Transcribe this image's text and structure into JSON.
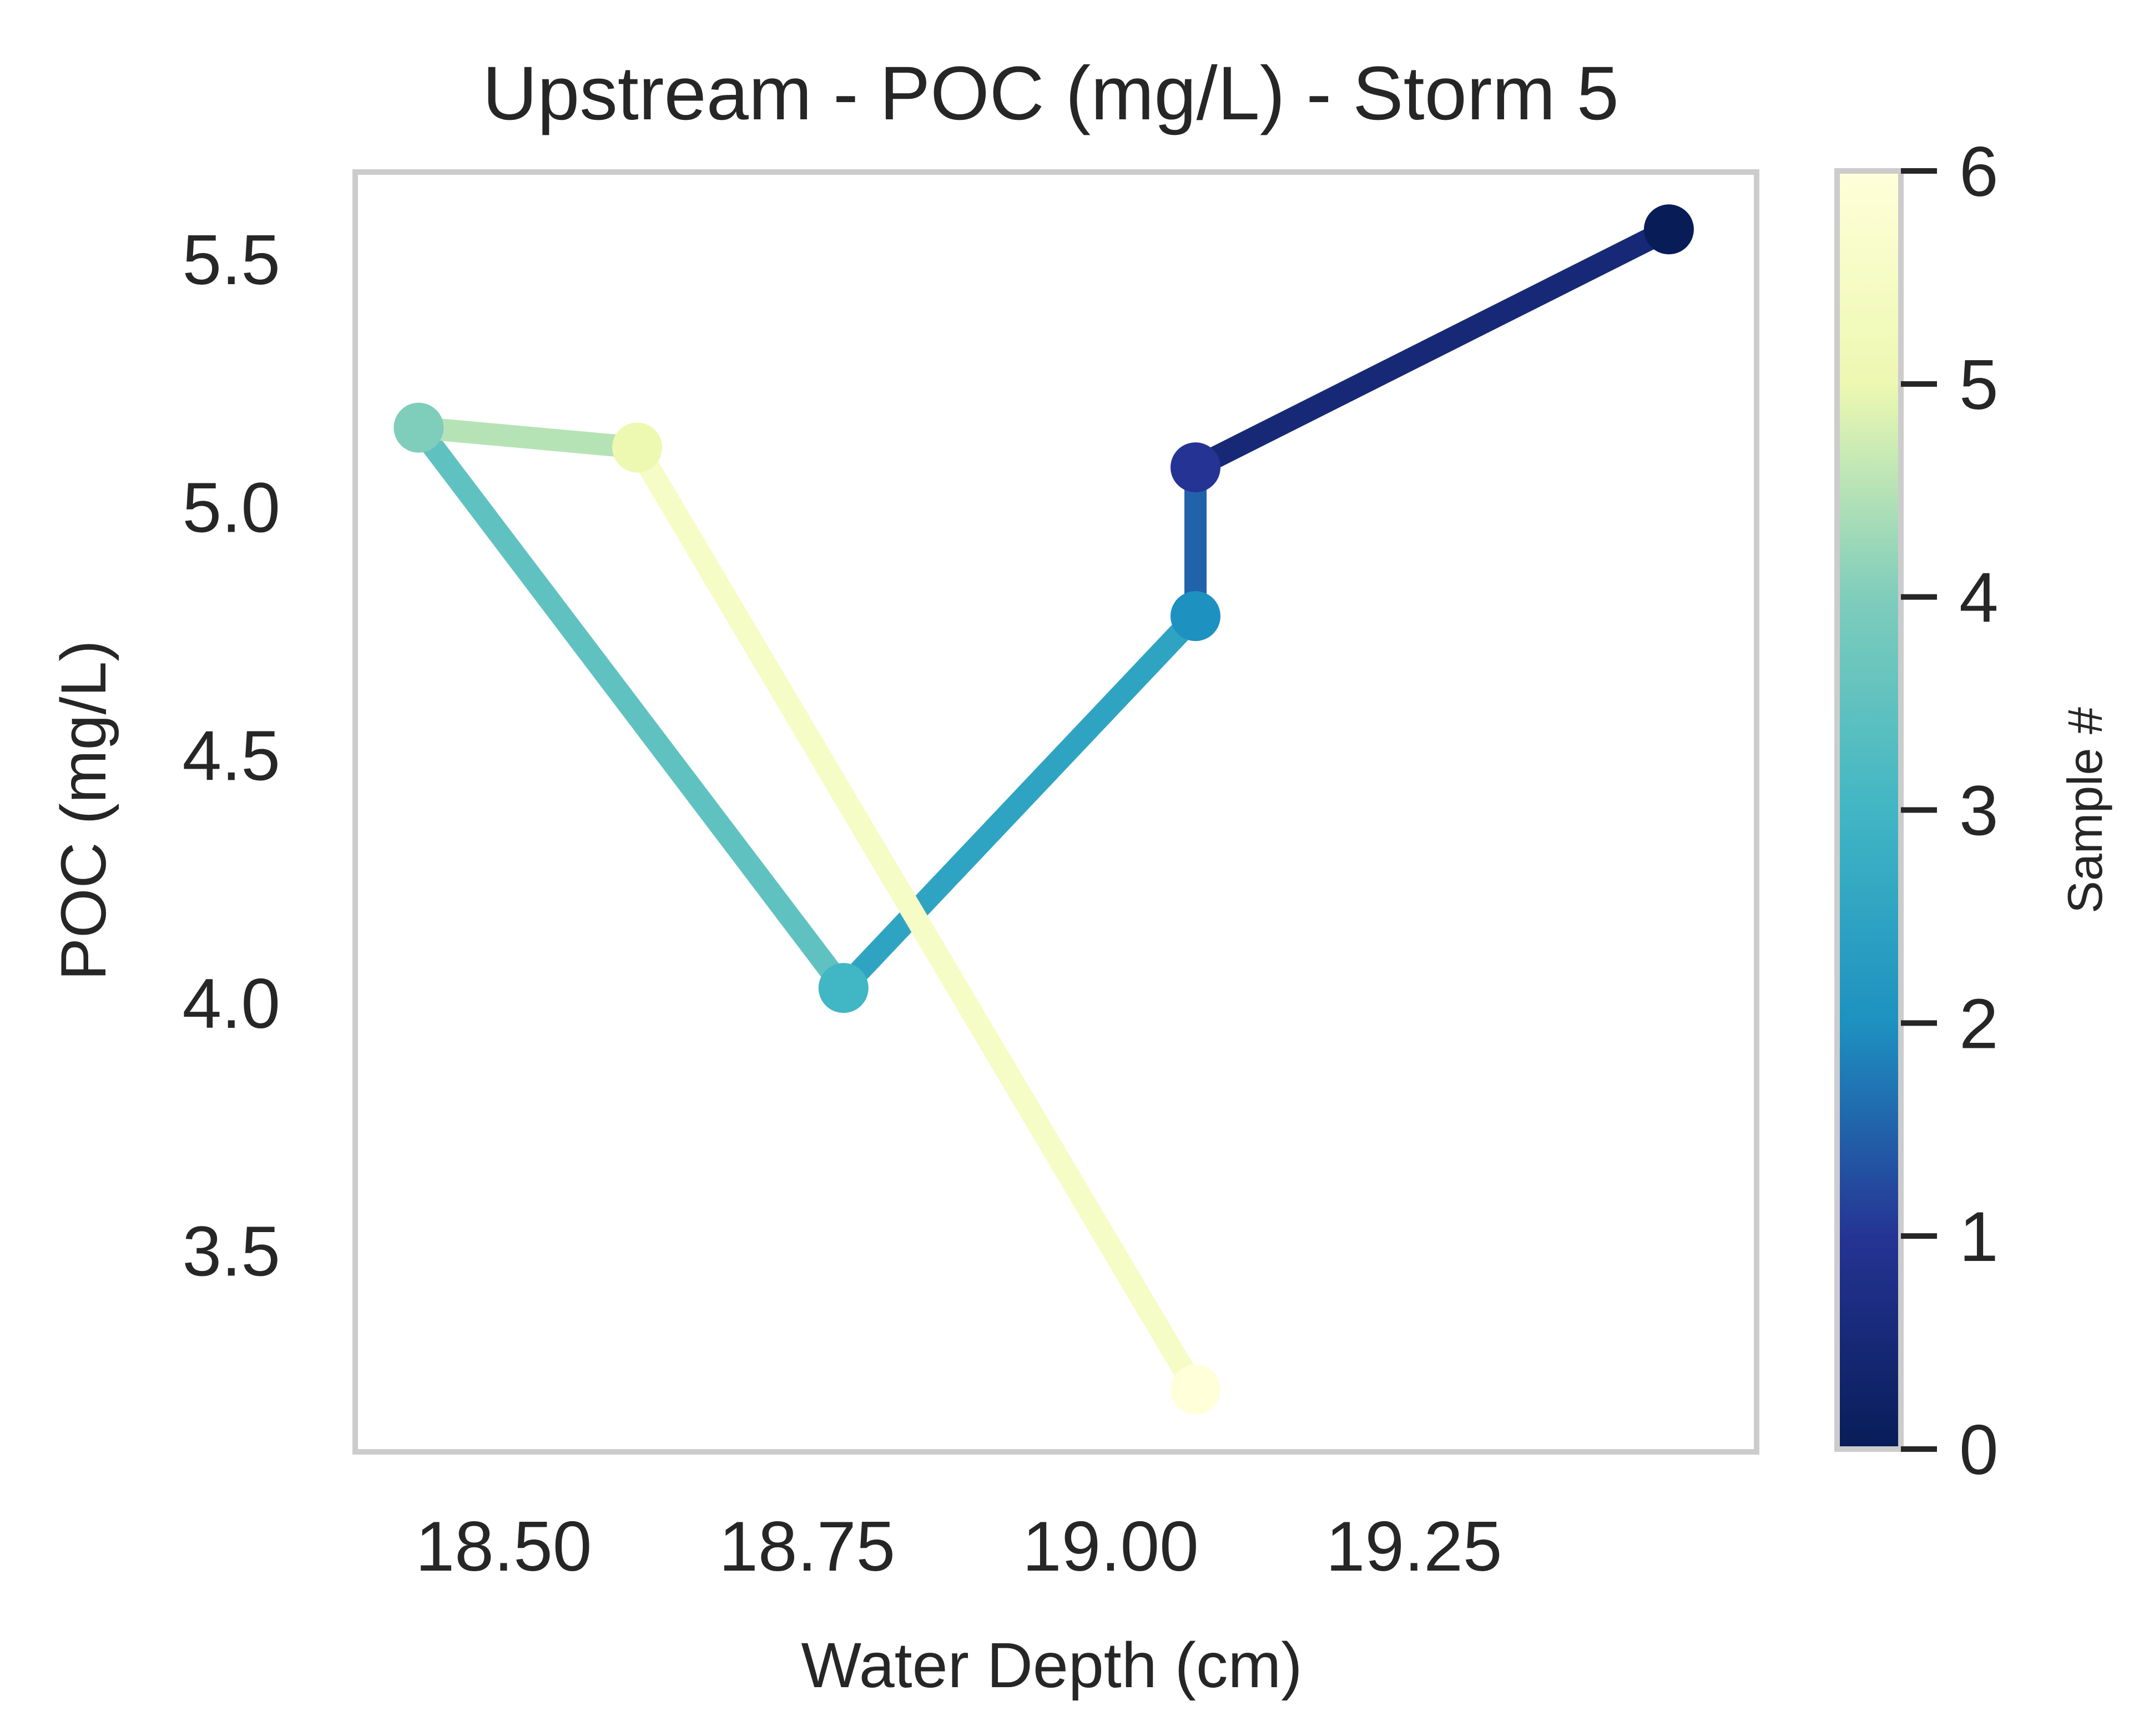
{
  "chart_data": {
    "type": "line",
    "title": "Upstream - POC (mg/L) - Storm 5",
    "xlabel": "Water Depth (cm)",
    "ylabel": "POC (mg/L)",
    "xlim": [
      18.38,
      19.53
    ],
    "ylim": [
      3.1,
      5.67
    ],
    "xticks": [
      18.5,
      18.75,
      19.0,
      19.25
    ],
    "xtick_labels": [
      "18.50",
      "18.75",
      "19.00",
      "19.25"
    ],
    "yticks": [
      3.5,
      4.0,
      4.5,
      5.0,
      5.5
    ],
    "ytick_labels": [
      "3.5",
      "4.0",
      "4.5",
      "5.0",
      "5.5"
    ],
    "grid": false,
    "colormap": "YlGnBu_r",
    "series": [
      {
        "points": [
          {
            "sample": 0,
            "x": 19.46,
            "y": 5.56
          },
          {
            "sample": 1,
            "x": 19.07,
            "y": 5.08
          },
          {
            "sample": 2,
            "x": 19.07,
            "y": 4.78
          },
          {
            "sample": 3,
            "x": 18.78,
            "y": 4.03
          },
          {
            "sample": 4,
            "x": 18.43,
            "y": 5.16
          },
          {
            "sample": 5,
            "x": 18.61,
            "y": 5.12
          },
          {
            "sample": 6,
            "x": 19.07,
            "y": 3.22
          }
        ]
      }
    ],
    "colorbar": {
      "label": "Sample #",
      "min": 0,
      "max": 6,
      "ticks": [
        0,
        1,
        2,
        3,
        4,
        5,
        6
      ],
      "tick_labels": [
        "0",
        "1",
        "2",
        "3",
        "4",
        "5",
        "6"
      ],
      "colors": [
        "#081d58",
        "#253494",
        "#1d91c0",
        "#41b6c4",
        "#7fcdbb",
        "#edf8b1",
        "#ffffd9"
      ]
    }
  }
}
